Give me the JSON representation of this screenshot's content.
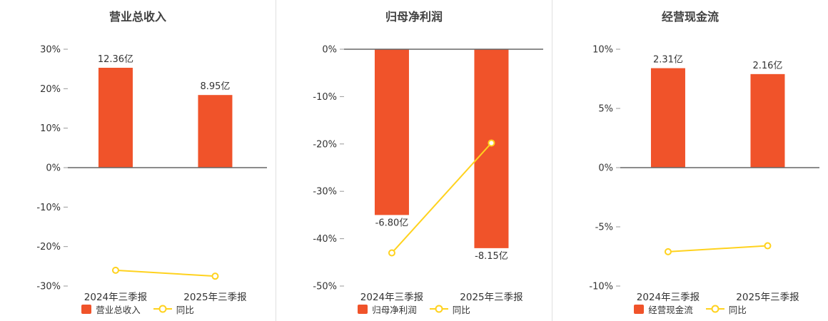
{
  "colors": {
    "bar": "#f0532a",
    "line": "#ffd21e",
    "marker_fill": "#ffffff",
    "title_text": "#404040",
    "axis_text": "#333333",
    "value_label_text": "#333333",
    "zero_line": "#666666",
    "tick_mark": "#999999",
    "divider": "#e0e0e0"
  },
  "chart_data": [
    {
      "type": "bar",
      "title": "营业总收入",
      "categories": [
        "2024年三季报",
        "2025年三季报"
      ],
      "bar_series": {
        "name": "营业总收入",
        "value_labels": [
          "12.36亿",
          "8.95亿"
        ],
        "values_yi": [
          12.36,
          8.95
        ],
        "plot_pct": [
          25.3,
          18.4
        ]
      },
      "line_series": {
        "name": "同比",
        "values_pct": [
          -26.0,
          -27.5
        ]
      },
      "y_axis": {
        "unit": "%",
        "ylim": [
          -30,
          30
        ],
        "ticks_pct": [
          30,
          20,
          10,
          0,
          -10,
          -20,
          -30
        ]
      },
      "legend": [
        "营业总收入",
        "同比"
      ],
      "grid": false,
      "legend_position": "bottom"
    },
    {
      "type": "bar",
      "title": "归母净利润",
      "categories": [
        "2024年三季报",
        "2025年三季报"
      ],
      "bar_series": {
        "name": "归母净利润",
        "value_labels": [
          "-6.80亿",
          "-8.15亿"
        ],
        "values_yi": [
          -6.8,
          -8.15
        ],
        "plot_pct": [
          -35.0,
          -42.0
        ]
      },
      "line_series": {
        "name": "同比",
        "values_pct": [
          -43.0,
          -19.8
        ]
      },
      "y_axis": {
        "unit": "%",
        "ylim": [
          -50,
          0
        ],
        "ticks_pct": [
          0,
          -10,
          -20,
          -30,
          -40,
          -50
        ]
      },
      "legend": [
        "归母净利润",
        "同比"
      ],
      "grid": false,
      "legend_position": "bottom"
    },
    {
      "type": "bar",
      "title": "经营现金流",
      "categories": [
        "2024年三季报",
        "2025年三季报"
      ],
      "bar_series": {
        "name": "经营现金流",
        "value_labels": [
          "2.31亿",
          "2.16亿"
        ],
        "values_yi": [
          2.31,
          2.16
        ],
        "plot_pct": [
          8.4,
          7.9
        ]
      },
      "line_series": {
        "name": "同比",
        "values_pct": [
          -7.1,
          -6.6
        ]
      },
      "y_axis": {
        "unit": "%",
        "ylim": [
          -10,
          10
        ],
        "ticks_pct": [
          10,
          5,
          0,
          -5,
          -10
        ]
      },
      "legend": [
        "经营现金流",
        "同比"
      ],
      "grid": false,
      "legend_position": "bottom"
    }
  ]
}
